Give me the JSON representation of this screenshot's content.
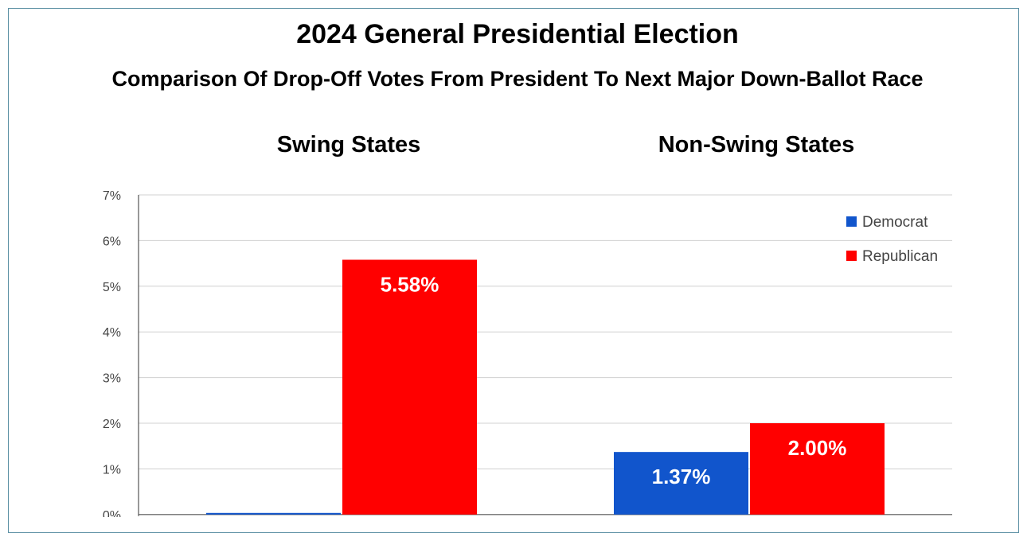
{
  "chart_data": {
    "type": "bar",
    "title": "2024 General Presidential Election",
    "subtitle": "Comparison Of Drop-Off Votes From President To Next Major Down-Ballot Race",
    "categories": [
      "Swing States",
      "Non-Swing States"
    ],
    "series": [
      {
        "name": "Democrat",
        "color": "#1155cc",
        "values": [
          0.0,
          1.37
        ],
        "labels": [
          "",
          "1.37%"
        ]
      },
      {
        "name": "Republican",
        "color": "#ff0000",
        "values": [
          5.58,
          2.0
        ],
        "labels": [
          "5.58%",
          "2.00%"
        ]
      }
    ],
    "ylim": [
      0,
      7
    ],
    "yticks": [
      "0%",
      "1%",
      "2%",
      "3%",
      "4%",
      "5%",
      "6%",
      "7%"
    ],
    "grid": true,
    "legend": "top-right",
    "xlabel": "",
    "ylabel": ""
  }
}
